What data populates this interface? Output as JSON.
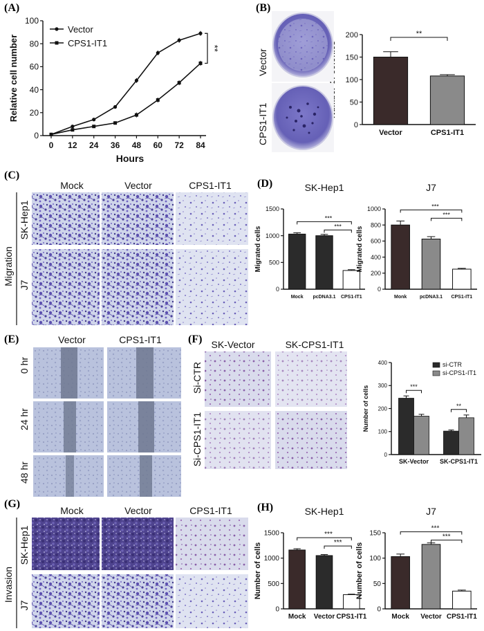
{
  "colors": {
    "black_bar": "#2b2b2b",
    "dark_bar": "#3a2a2a",
    "gray_bar": "#8a8a8a",
    "white_bar": "#ffffff",
    "crystal_violet": "#5b4fae",
    "wound_gap": "#6e7890"
  },
  "panel_letters": [
    "(A)",
    "(B)",
    "(C)",
    "(D)",
    "(E)",
    "(F)",
    "(G)",
    "(H)"
  ],
  "panel_c": {
    "columns": [
      "Mock",
      "Vector",
      "CPS1-IT1"
    ],
    "group_label": "Migration",
    "rows": [
      "SK-Hep1",
      "J7"
    ]
  },
  "panel_e": {
    "columns": [
      "Vector",
      "CPS1-IT1"
    ],
    "rows": [
      "0 hr",
      "24 hr",
      "48 hr"
    ]
  },
  "panel_f": {
    "columns": [
      "SK-Vector",
      "SK-CPS1-IT1"
    ],
    "rows": [
      "Si-CTR",
      "Si-CPS1-IT1"
    ]
  },
  "panel_g": {
    "columns": [
      "Mock",
      "Vector",
      "CPS1-IT1"
    ],
    "group_label": "Invasion",
    "rows": [
      "SK-Hep1",
      "J7"
    ]
  },
  "panel_b_images": {
    "rows": [
      "Vector",
      "CPS1-IT1"
    ]
  },
  "chart_data": [
    {
      "id": "A",
      "type": "line",
      "xlabel": "Hours",
      "ylabel": "Relative cell number",
      "x": [
        0,
        12,
        24,
        36,
        48,
        60,
        72,
        84
      ],
      "xlim": [
        0,
        84
      ],
      "ylim": [
        0,
        100
      ],
      "yticks": [
        0,
        20,
        40,
        60,
        80,
        100
      ],
      "series": [
        {
          "name": "Vector",
          "marker": "circle",
          "values": [
            1,
            8,
            14,
            25,
            48,
            72,
            83,
            89
          ]
        },
        {
          "name": "CPS1-IT1",
          "marker": "square",
          "values": [
            1,
            5,
            8,
            11,
            18,
            31,
            46,
            63
          ]
        }
      ],
      "annotations": [
        "**"
      ],
      "legend": "top-left"
    },
    {
      "id": "B",
      "type": "bar",
      "ylabel": "Number of colonies",
      "categories": [
        "Vector",
        "CPS1-IT1"
      ],
      "values": [
        150,
        108
      ],
      "errors": [
        12,
        3
      ],
      "ylim": [
        0,
        200
      ],
      "yticks": [
        0,
        50,
        100,
        150,
        200
      ],
      "annotations": [
        "**"
      ]
    },
    {
      "id": "D1",
      "type": "bar",
      "title": "SK-Hep1",
      "ylabel": "Migrated cells",
      "categories": [
        "Mock",
        "pcDNA3.1",
        "CPS1-IT1"
      ],
      "values": [
        1030,
        1000,
        350
      ],
      "errors": [
        25,
        25,
        15
      ],
      "ylim": [
        0,
        1500
      ],
      "yticks": [
        0,
        500,
        1000,
        1500
      ],
      "annotations": [
        "***",
        "***"
      ]
    },
    {
      "id": "D2",
      "type": "bar",
      "title": "J7",
      "ylabel": "Migrated cells",
      "categories": [
        "Monk",
        "pcDNA3.1",
        "CPS1-IT1"
      ],
      "values": [
        800,
        625,
        250
      ],
      "errors": [
        50,
        30,
        10
      ],
      "ylim": [
        0,
        1000
      ],
      "yticks": [
        0,
        200,
        400,
        600,
        800,
        1000
      ],
      "annotations": [
        "***",
        "***"
      ]
    },
    {
      "id": "F",
      "type": "bar",
      "ylabel": "Number of cells",
      "categories": [
        "SK-Vector",
        "SK-CPS1-IT1"
      ],
      "series": [
        {
          "name": "si-CTR",
          "values": [
            245,
            102
          ],
          "errors": [
            10,
            5
          ]
        },
        {
          "name": "si-CPS1-IT1",
          "values": [
            167,
            160
          ],
          "errors": [
            8,
            12
          ]
        }
      ],
      "ylim": [
        0,
        400
      ],
      "yticks": [
        0,
        100,
        200,
        300,
        400
      ],
      "annotations": [
        "***",
        "**"
      ],
      "legend": "top-right"
    },
    {
      "id": "H1",
      "type": "bar",
      "title": "SK-Hep1",
      "ylabel": "Number of cells",
      "categories": [
        "Mock",
        "Vector",
        "CPS1-IT1"
      ],
      "values": [
        1160,
        1050,
        280
      ],
      "errors": [
        25,
        20,
        10
      ],
      "ylim": [
        0,
        1500
      ],
      "yticks": [
        0,
        500,
        1000,
        1500
      ],
      "annotations": [
        "***",
        "***"
      ]
    },
    {
      "id": "H2",
      "type": "bar",
      "title": "J7",
      "ylabel": "Number of cells",
      "categories": [
        "Mock",
        "Vector",
        "CPS1-IT1"
      ],
      "values": [
        103,
        127,
        35
      ],
      "errors": [
        5,
        3,
        2
      ],
      "ylim": [
        0,
        150
      ],
      "yticks": [
        0,
        50,
        100,
        150
      ],
      "annotations": [
        "***",
        "***"
      ]
    }
  ]
}
